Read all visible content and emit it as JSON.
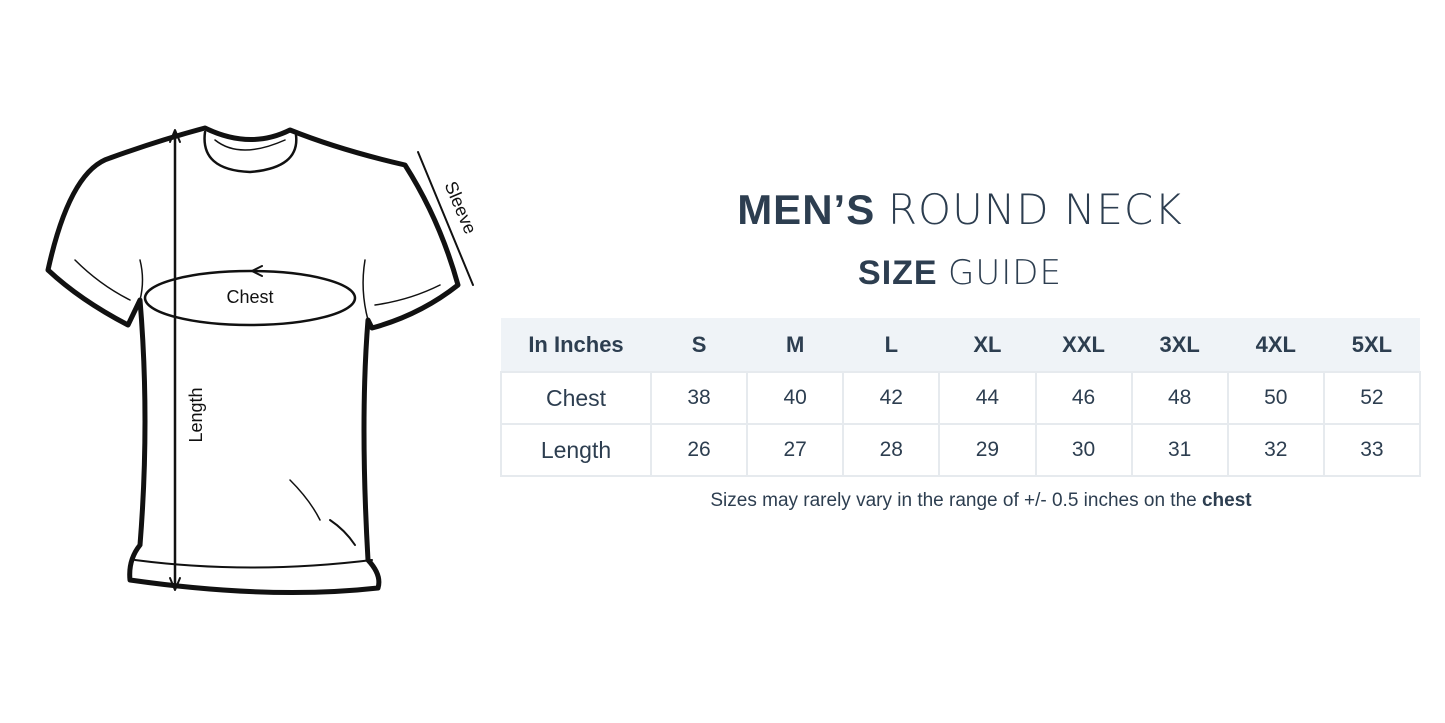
{
  "diagram": {
    "labels": {
      "chest": "Chest",
      "sleeve": "Sleeve",
      "length": "Length"
    }
  },
  "title": {
    "line1_bold": "MEN’S",
    "line1_light": "ROUND NECK",
    "line2_bold": "SIZE",
    "line2_light": "GUIDE"
  },
  "table": {
    "headers": [
      "In Inches",
      "S",
      "M",
      "L",
      "XL",
      "XXL",
      "3XL",
      "4XL",
      "5XL"
    ],
    "rows": [
      {
        "label": "Chest",
        "values": [
          "38",
          "40",
          "42",
          "44",
          "46",
          "48",
          "50",
          "52"
        ]
      },
      {
        "label": "Length",
        "values": [
          "26",
          "27",
          "28",
          "29",
          "30",
          "31",
          "32",
          "33"
        ]
      }
    ]
  },
  "note": {
    "text": "Sizes may rarely vary in the range of +/- 0.5 inches on the ",
    "bold": "chest"
  },
  "colors": {
    "text": "#2d3e50",
    "header_bg": "#eff3f7",
    "border": "#e6eaee"
  }
}
